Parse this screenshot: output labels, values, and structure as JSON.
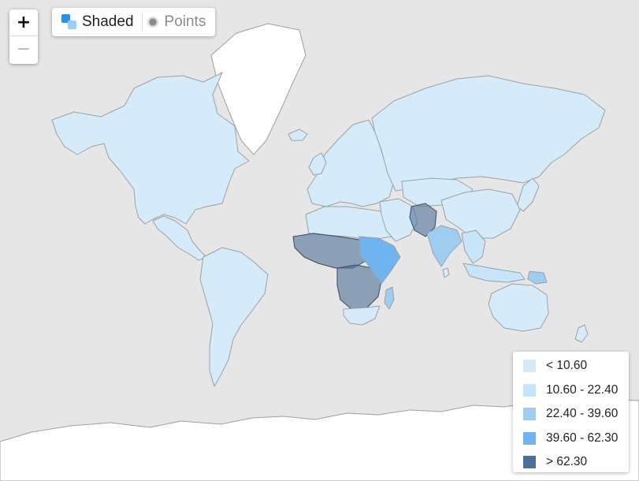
{
  "map": {
    "colors": {
      "ocean": "#e6e6e6",
      "land_default": "#eaf4fb",
      "no_data_land": "#ffffff",
      "border": "#9aa0a6"
    },
    "regions": [
      {
        "name": "north-america",
        "bin": 0
      },
      {
        "name": "greenland",
        "bin": -1
      },
      {
        "name": "central-america",
        "bin": 0
      },
      {
        "name": "south-america",
        "bin": 0
      },
      {
        "name": "europe",
        "bin": 0
      },
      {
        "name": "russia",
        "bin": 0
      },
      {
        "name": "middle-east",
        "bin": 0
      },
      {
        "name": "central-asia",
        "bin": 0
      },
      {
        "name": "afghanistan-pakistan",
        "bin": 4
      },
      {
        "name": "india",
        "bin": 2
      },
      {
        "name": "china",
        "bin": 0
      },
      {
        "name": "southeast-asia",
        "bin": 1
      },
      {
        "name": "indonesia",
        "bin": 1
      },
      {
        "name": "papua-new-guinea",
        "bin": 2
      },
      {
        "name": "australia",
        "bin": 0
      },
      {
        "name": "new-zealand",
        "bin": 0
      },
      {
        "name": "japan",
        "bin": 0
      },
      {
        "name": "north-africa",
        "bin": 0
      },
      {
        "name": "west-africa",
        "bin": 4
      },
      {
        "name": "central-africa",
        "bin": 4
      },
      {
        "name": "east-africa",
        "bin": 3
      },
      {
        "name": "southern-africa",
        "bin": 0
      },
      {
        "name": "madagascar",
        "bin": 2
      },
      {
        "name": "antarctica",
        "bin": -1
      },
      {
        "name": "britain",
        "bin": 0
      },
      {
        "name": "iceland",
        "bin": 0
      },
      {
        "name": "sri-lanka",
        "bin": 0
      }
    ]
  },
  "zoom": {
    "in_label": "+",
    "out_label": "−"
  },
  "mode_toggle": {
    "options": [
      {
        "label": "Shaded",
        "icon": "shaded-icon",
        "active": true
      },
      {
        "label": "Points",
        "icon": "points-icon",
        "active": false
      }
    ]
  },
  "legend": {
    "items": [
      {
        "label": "< 10.60",
        "color": "#d6ebf9"
      },
      {
        "label": "10.60 - 22.40",
        "color": "#c7e4f8"
      },
      {
        "label": "22.40 - 39.60",
        "color": "#9fcdf2"
      },
      {
        "label": "39.60 - 62.30",
        "color": "#6fb4f0"
      },
      {
        "label": "> 62.30",
        "color": "#4e6f98"
      }
    ]
  }
}
